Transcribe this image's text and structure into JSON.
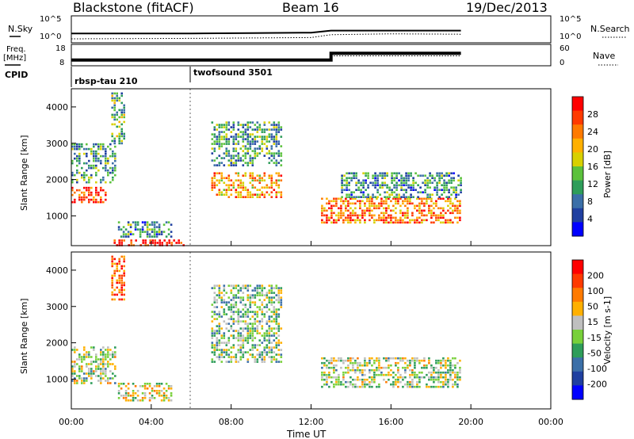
{
  "header": {
    "station": "Blackstone (fitACF)",
    "beam": "Beam 16",
    "date": "19/Dec/2013"
  },
  "left_labels": {
    "nsky": "N.Sky",
    "freq_top": "Freq.",
    "freq_unit": "[MHz]",
    "cpid": "CPID"
  },
  "right_labels": {
    "nsearch": "N.Search",
    "nave": "Nave"
  },
  "cpid_segments": [
    "rbsp-tau 210",
    "twofsound 3501"
  ],
  "chart_data": [
    {
      "type": "line",
      "panel": "noise",
      "y_left_ticks": [
        "10^5",
        "10^0"
      ],
      "y_right_ticks": [
        "10^5",
        "10^0"
      ],
      "series": [
        {
          "name": "N.Sky",
          "x": [
            "00:00",
            "03:00",
            "06:00",
            "09:00",
            "12:00",
            "13:00",
            "16:00",
            "19:30"
          ],
          "values_log10": [
            1.5,
            1.5,
            1.5,
            1.6,
            1.7,
            2.2,
            2.2,
            2.2
          ]
        },
        {
          "name": "N.Search",
          "x": [
            "00:00",
            "06:00",
            "12:00",
            "13:00",
            "16:00",
            "19:30"
          ],
          "values_log10": [
            0.2,
            0.3,
            0.5,
            1.2,
            1.4,
            1.3
          ]
        }
      ]
    },
    {
      "type": "line",
      "panel": "frequency",
      "y_left_ticks": [
        "18",
        "8"
      ],
      "y_right_ticks": [
        "60",
        "0"
      ],
      "series": [
        {
          "name": "Freq.",
          "x": [
            "00:00",
            "13:00",
            "13:00",
            "19:30"
          ],
          "values": [
            10.5,
            10.5,
            14.5,
            14.5
          ]
        },
        {
          "name": "Nave",
          "x": [
            "00:00",
            "13:00",
            "13:00",
            "19:30"
          ],
          "values": [
            16,
            16,
            30,
            30
          ]
        }
      ]
    },
    {
      "type": "heatmap",
      "panel": "power",
      "ylabel": "Slant Range [km]",
      "xlim": [
        "00:00",
        "24:00"
      ],
      "ylim": [
        180,
        4500
      ],
      "y_ticks": [
        1000,
        2000,
        3000,
        4000
      ],
      "colorbar": {
        "label": "Power [dB]",
        "ticks": [
          4,
          8,
          12,
          16,
          20,
          24,
          28
        ],
        "colors": [
          "#0000ff",
          "#1f3fa0",
          "#3b6fa8",
          "#2e9d5a",
          "#5bc13c",
          "#d8d000",
          "#ffb000",
          "#ff7a00",
          "#ff3a00",
          "#ff0000"
        ]
      },
      "regions": [
        {
          "t0": "00:00",
          "t1": "01:40",
          "r0": 1350,
          "r1": 1800,
          "level": 0.85
        },
        {
          "t0": "00:00",
          "t1": "02:10",
          "r0": 1900,
          "r1": 3000,
          "level": 0.35
        },
        {
          "t0": "02:00",
          "t1": "02:40",
          "r0": 3000,
          "r1": 4400,
          "level": 0.4
        },
        {
          "t0": "02:00",
          "t1": "05:40",
          "r0": 200,
          "r1": 350,
          "level": 0.95
        },
        {
          "t0": "02:20",
          "t1": "05:00",
          "r0": 400,
          "r1": 850,
          "level": 0.3
        },
        {
          "t0": "07:00",
          "t1": "10:30",
          "r0": 1500,
          "r1": 2200,
          "level": 0.7
        },
        {
          "t0": "07:00",
          "t1": "10:30",
          "r0": 2400,
          "r1": 3600,
          "level": 0.35
        },
        {
          "t0": "12:30",
          "t1": "19:30",
          "r0": 800,
          "r1": 1500,
          "level": 0.75
        },
        {
          "t0": "13:30",
          "t1": "19:30",
          "r0": 1500,
          "r1": 2200,
          "level": 0.3
        }
      ]
    },
    {
      "type": "heatmap",
      "panel": "velocity",
      "ylabel": "Slant Range [km]",
      "xlabel": "Time UT",
      "xlim": [
        "00:00",
        "24:00"
      ],
      "ylim": [
        180,
        4500
      ],
      "y_ticks": [
        1000,
        2000,
        3000,
        4000
      ],
      "x_ticks": [
        "00:00",
        "04:00",
        "08:00",
        "12:00",
        "16:00",
        "20:00",
        "00:00"
      ],
      "colorbar": {
        "label": "Velocity [m s-1]",
        "ticks": [
          200,
          100,
          50,
          15,
          -15,
          -50,
          -100,
          -200
        ],
        "colors": [
          "#0000ff",
          "#1f3fa0",
          "#3b6fa8",
          "#2e9d5a",
          "#78d03a",
          "#bfbfbf",
          "#ffb000",
          "#ff7a00",
          "#ff3a00",
          "#ff0000"
        ]
      },
      "regions": [
        {
          "t0": "00:00",
          "t1": "02:10",
          "r0": 900,
          "r1": 1900,
          "level": 0.5
        },
        {
          "t0": "02:00",
          "t1": "02:40",
          "r0": 3200,
          "r1": 4400,
          "level": 0.85
        },
        {
          "t0": "02:20",
          "t1": "05:00",
          "r0": 400,
          "r1": 900,
          "level": 0.55
        },
        {
          "t0": "07:00",
          "t1": "10:30",
          "r0": 1500,
          "r1": 3600,
          "level": 0.45
        },
        {
          "t0": "12:30",
          "t1": "19:30",
          "r0": 800,
          "r1": 1600,
          "level": 0.5
        }
      ]
    }
  ]
}
